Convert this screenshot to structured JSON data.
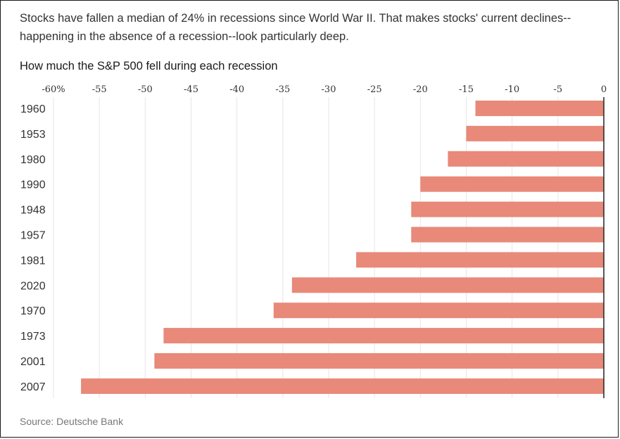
{
  "subtitle": "Stocks have fallen a median of 24% in recessions since World War II. That makes stocks' current declines--happening in the absence of a recession--look particularly deep.",
  "source": "Source: Deutsche Bank",
  "colors": {
    "bar": "#e8897a",
    "grid": "#e6e6e6",
    "axis": "#222222",
    "text": "#333333"
  },
  "chart_data": {
    "type": "bar",
    "orientation": "horizontal",
    "title": "How much the S&P 500 fell during each recession",
    "xlabel": "",
    "ylabel": "",
    "xlim": [
      -60,
      0
    ],
    "xticks": [
      -60,
      -55,
      -50,
      -45,
      -40,
      -35,
      -30,
      -25,
      -20,
      -15,
      -10,
      -5,
      0
    ],
    "xtick_labels": [
      "-60%",
      "-55",
      "-50",
      "-45",
      "-40",
      "-35",
      "-30",
      "-25",
      "-20",
      "-15",
      "-10",
      "-5",
      "0"
    ],
    "grid": true,
    "categories": [
      "1960",
      "1953",
      "1980",
      "1990",
      "1948",
      "1957",
      "1981",
      "2020",
      "1970",
      "1973",
      "2001",
      "2007"
    ],
    "values": [
      -14,
      -15,
      -17,
      -20,
      -21,
      -21,
      -27,
      -34,
      -36,
      -48,
      -49,
      -57
    ]
  }
}
